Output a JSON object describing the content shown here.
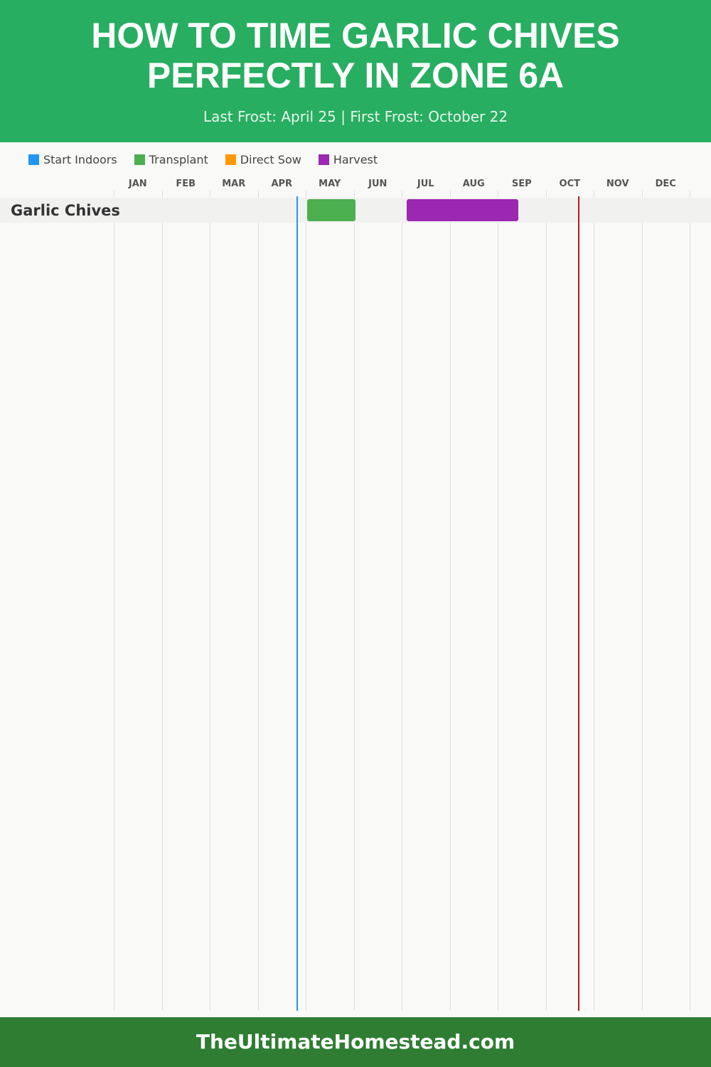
{
  "header": {
    "title": "HOW TO TIME GARLIC CHIVES PERFECTLY IN ZONE 6A",
    "subtitle": "Last Frost: April 25 | First Frost: October 22"
  },
  "legend": [
    {
      "label": "Start Indoors",
      "color": "#2196f3"
    },
    {
      "label": "Transplant",
      "color": "#4caf50"
    },
    {
      "label": "Direct Sow",
      "color": "#ff9800"
    },
    {
      "label": "Harvest",
      "color": "#9c27b0"
    }
  ],
  "chart_data": {
    "type": "gantt",
    "months": [
      "JAN",
      "FEB",
      "MAR",
      "APR",
      "MAY",
      "JUN",
      "JUL",
      "AUG",
      "SEP",
      "OCT",
      "NOV",
      "DEC"
    ],
    "rows": [
      {
        "crop": "Garlic Chives",
        "tasks": [
          {
            "type": "Transplant",
            "start": "05-02",
            "end": "06-02",
            "color": "#4caf50"
          },
          {
            "type": "Harvest",
            "start": "07-04",
            "end": "09-14",
            "color": "#9c27b0"
          }
        ]
      }
    ],
    "markers": [
      {
        "label": "Last Frost",
        "date": "04-25",
        "color": "#2196f3"
      },
      {
        "label": "First Frost",
        "date": "10-22",
        "color": "#b71c1c"
      }
    ]
  },
  "footer": {
    "site": "TheUltimateHomestead.com"
  }
}
